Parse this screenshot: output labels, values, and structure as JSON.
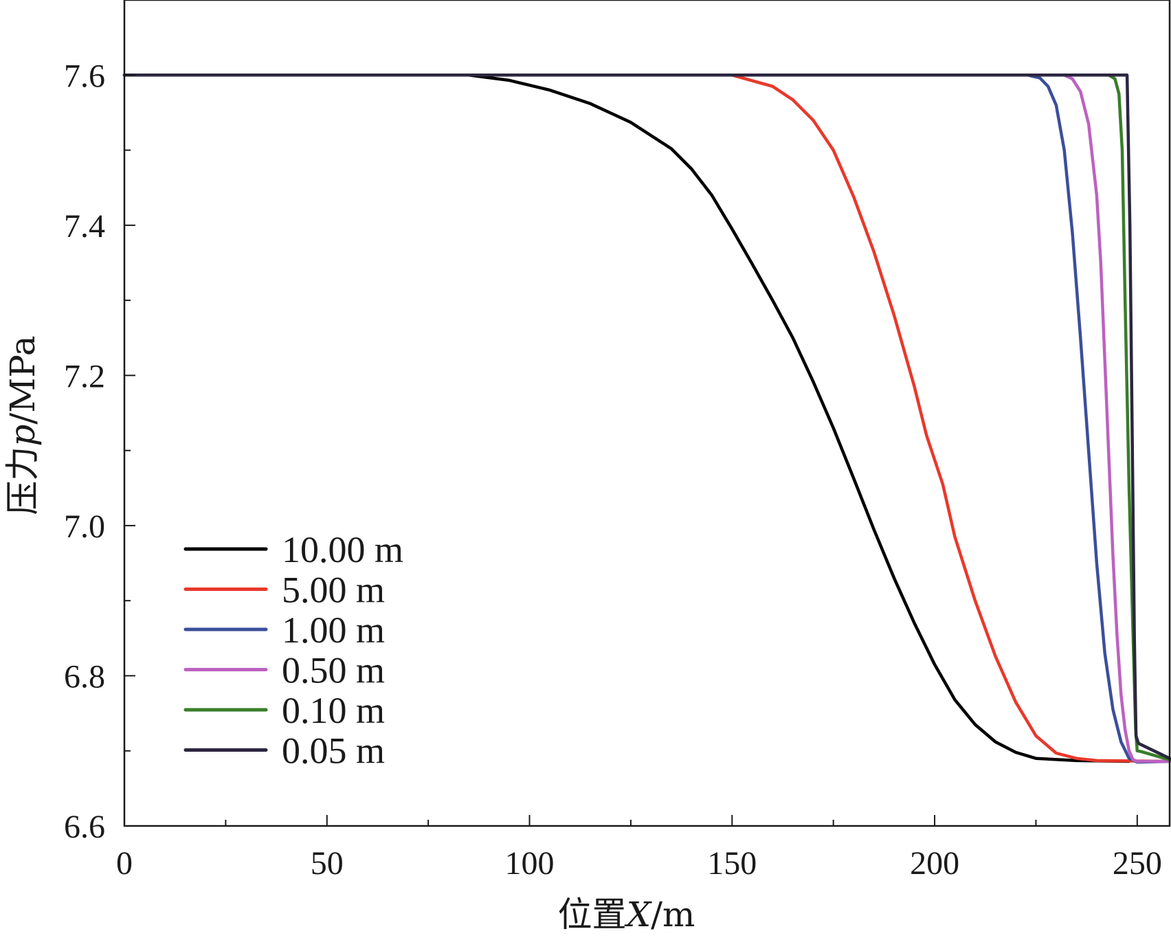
{
  "chart_data": {
    "type": "line",
    "xlabel": "位置X/m",
    "xlabel_parts": {
      "prefix": "位置",
      "var": "X",
      "unit": "/m"
    },
    "ylabel": "压力p/MPa",
    "ylabel_parts": {
      "prefix": "压力",
      "var": "p",
      "unit": "/MPa"
    },
    "xlim": [
      0,
      258
    ],
    "ylim": [
      6.6,
      7.7
    ],
    "x_ticks": [
      0,
      50,
      100,
      150,
      200,
      250
    ],
    "x_tick_labels": [
      "0",
      "50",
      "100",
      "150",
      "200",
      "250"
    ],
    "x_minor_ticks": [
      25,
      75,
      125,
      175,
      225
    ],
    "y_ticks": [
      6.6,
      6.8,
      7.0,
      7.2,
      7.4,
      7.6
    ],
    "y_tick_labels": [
      "6.6",
      "6.8",
      "7.0",
      "7.2",
      "7.4",
      "7.6"
    ],
    "y_minor_ticks": [
      6.7,
      6.9,
      7.1,
      7.3,
      7.5
    ],
    "grid": false,
    "legend_position": "lower-left",
    "series": [
      {
        "name": "10.00 m",
        "color": "#000000",
        "points": [
          [
            0,
            7.6
          ],
          [
            85,
            7.6
          ],
          [
            95,
            7.593
          ],
          [
            105,
            7.58
          ],
          [
            115,
            7.562
          ],
          [
            125,
            7.537
          ],
          [
            135,
            7.502
          ],
          [
            140,
            7.475
          ],
          [
            145,
            7.44
          ],
          [
            150,
            7.395
          ],
          [
            155,
            7.348
          ],
          [
            160,
            7.3
          ],
          [
            165,
            7.25
          ],
          [
            170,
            7.192
          ],
          [
            175,
            7.13
          ],
          [
            180,
            7.063
          ],
          [
            185,
            6.995
          ],
          [
            190,
            6.93
          ],
          [
            195,
            6.87
          ],
          [
            200,
            6.815
          ],
          [
            205,
            6.768
          ],
          [
            210,
            6.735
          ],
          [
            215,
            6.712
          ],
          [
            220,
            6.698
          ],
          [
            225,
            6.69
          ],
          [
            235,
            6.687
          ],
          [
            248,
            6.686
          ]
        ]
      },
      {
        "name": "5.00 m",
        "color": "#e8392b",
        "points": [
          [
            0,
            7.6
          ],
          [
            150,
            7.6
          ],
          [
            160,
            7.585
          ],
          [
            165,
            7.567
          ],
          [
            170,
            7.54
          ],
          [
            175,
            7.5
          ],
          [
            180,
            7.438
          ],
          [
            185,
            7.365
          ],
          [
            190,
            7.28
          ],
          [
            195,
            7.185
          ],
          [
            198,
            7.12
          ],
          [
            202,
            7.055
          ],
          [
            205,
            6.985
          ],
          [
            210,
            6.9
          ],
          [
            215,
            6.826
          ],
          [
            220,
            6.765
          ],
          [
            225,
            6.72
          ],
          [
            230,
            6.697
          ],
          [
            235,
            6.69
          ],
          [
            240,
            6.687
          ],
          [
            258,
            6.686
          ]
        ]
      },
      {
        "name": "1.00 m",
        "color": "#3b4f9a",
        "points": [
          [
            0,
            7.6
          ],
          [
            223,
            7.6
          ],
          [
            226,
            7.596
          ],
          [
            228,
            7.585
          ],
          [
            230,
            7.56
          ],
          [
            232,
            7.5
          ],
          [
            234,
            7.39
          ],
          [
            236,
            7.25
          ],
          [
            238,
            7.1
          ],
          [
            240,
            6.95
          ],
          [
            242,
            6.83
          ],
          [
            244,
            6.755
          ],
          [
            246,
            6.712
          ],
          [
            248,
            6.69
          ],
          [
            250,
            6.685
          ],
          [
            258,
            6.686
          ]
        ]
      },
      {
        "name": "0.50 m",
        "color": "#bc62c0",
        "points": [
          [
            0,
            7.6
          ],
          [
            232,
            7.6
          ],
          [
            234,
            7.595
          ],
          [
            236,
            7.578
          ],
          [
            238,
            7.535
          ],
          [
            240,
            7.44
          ],
          [
            241,
            7.35
          ],
          [
            242,
            7.22
          ],
          [
            243,
            7.09
          ],
          [
            244,
            6.96
          ],
          [
            245,
            6.855
          ],
          [
            246,
            6.775
          ],
          [
            247,
            6.728
          ],
          [
            248,
            6.7
          ],
          [
            249,
            6.688
          ],
          [
            250,
            6.686
          ],
          [
            258,
            6.686
          ]
        ]
      },
      {
        "name": "0.10 m",
        "color": "#3a7d2b",
        "points": [
          [
            0,
            7.6
          ],
          [
            243,
            7.6
          ],
          [
            244.5,
            7.595
          ],
          [
            245.5,
            7.575
          ],
          [
            246.3,
            7.5
          ],
          [
            247,
            7.3
          ],
          [
            248,
            7.05
          ],
          [
            249,
            6.85
          ],
          [
            249.6,
            6.73
          ],
          [
            250,
            6.7
          ],
          [
            251,
            6.699
          ],
          [
            258,
            6.688
          ]
        ]
      },
      {
        "name": "0.05 m",
        "color": "#2c2640",
        "points": [
          [
            0,
            7.6
          ],
          [
            247.5,
            7.6
          ],
          [
            248.2,
            7.4
          ],
          [
            248.8,
            7.1
          ],
          [
            249.3,
            6.85
          ],
          [
            249.7,
            6.72
          ],
          [
            250.3,
            6.71
          ],
          [
            258,
            6.69
          ]
        ]
      }
    ]
  }
}
